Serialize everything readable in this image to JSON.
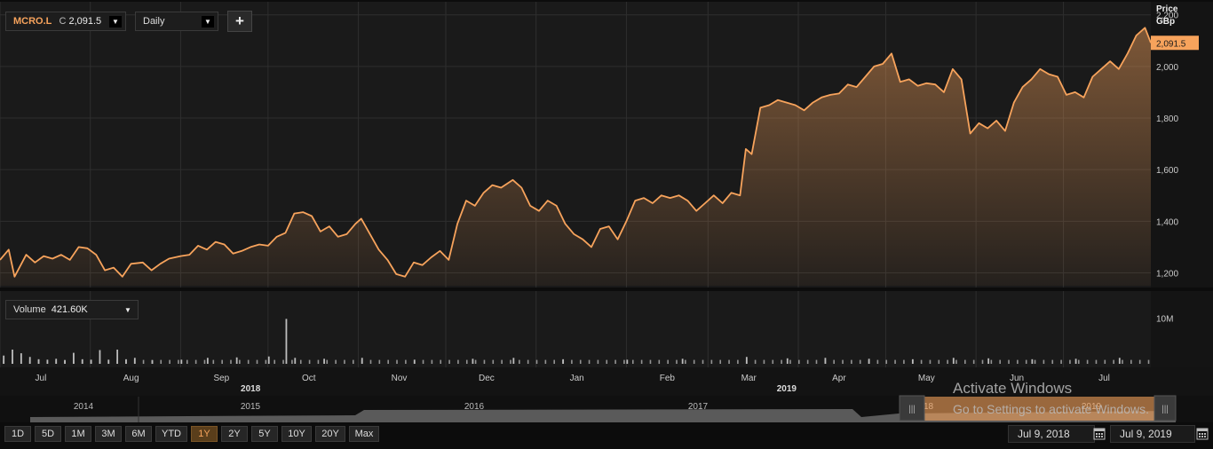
{
  "header": {
    "ticker": "MCRO.L",
    "close_prefix": "C",
    "close_value": "2,091.5",
    "interval": "Daily",
    "add_label": "+"
  },
  "price_axis": {
    "title": "Price",
    "unit": "GBp",
    "last_value_label": "2,091.5"
  },
  "volume_panel": {
    "label": "Volume",
    "value": "421.60K",
    "axis_label": "10M"
  },
  "time_axis": {
    "months": [
      {
        "label": "Jul",
        "date": "2018-07"
      },
      {
        "label": "Aug",
        "date": "2018-08"
      },
      {
        "label": "Sep",
        "date": "2018-09"
      },
      {
        "label": "Oct",
        "date": "2018-10"
      },
      {
        "label": "Nov",
        "date": "2018-11"
      },
      {
        "label": "Dec",
        "date": "2018-12"
      },
      {
        "label": "Jan",
        "date": "2019-01"
      },
      {
        "label": "Feb",
        "date": "2019-02"
      },
      {
        "label": "Mar",
        "date": "2019-03"
      },
      {
        "label": "Apr",
        "date": "2019-04"
      },
      {
        "label": "May",
        "date": "2019-05"
      },
      {
        "label": "Jun",
        "date": "2019-06"
      },
      {
        "label": "Jul",
        "date": "2019-07"
      }
    ],
    "years": [
      {
        "label": "2018",
        "date": "2018-09-25"
      },
      {
        "label": "2019",
        "date": "2019-03-28"
      }
    ]
  },
  "navigator": {
    "years": [
      "2014",
      "2015",
      "2016",
      "2017",
      "2018",
      "2019"
    ],
    "handle_glyph": "|||"
  },
  "range_buttons": [
    "1D",
    "5D",
    "1M",
    "3M",
    "6M",
    "YTD",
    "1Y",
    "2Y",
    "5Y",
    "10Y",
    "20Y",
    "Max"
  ],
  "active_range": "1Y",
  "date_range": {
    "from": "Jul 9, 2018",
    "to": "Jul 9, 2019"
  },
  "watermark": {
    "line1": "Activate Windows",
    "line2": "Go to Settings to activate Windows."
  },
  "colors": {
    "line": "#f7a35c",
    "background": "#1a1a1a",
    "grid": "#2e2e2e",
    "volume": "#bdbdbd"
  },
  "chart_data": {
    "type": "area",
    "title": "MCRO.L",
    "ylabel": "Price GBp",
    "ylim": [
      1150,
      2230
    ],
    "yticks": [
      1200,
      1400,
      1600,
      1800,
      2000,
      2200
    ],
    "grid": true,
    "xlim": [
      "2018-07-01",
      "2019-07-31"
    ],
    "series": [
      {
        "name": "MCRO.L",
        "points": [
          [
            "2018-07-01",
            1250
          ],
          [
            "2018-07-04",
            1290
          ],
          [
            "2018-07-06",
            1185
          ],
          [
            "2018-07-10",
            1270
          ],
          [
            "2018-07-13",
            1240
          ],
          [
            "2018-07-16",
            1265
          ],
          [
            "2018-07-19",
            1255
          ],
          [
            "2018-07-22",
            1270
          ],
          [
            "2018-07-25",
            1250
          ],
          [
            "2018-07-28",
            1300
          ],
          [
            "2018-07-31",
            1295
          ],
          [
            "2018-08-03",
            1270
          ],
          [
            "2018-08-06",
            1210
          ],
          [
            "2018-08-09",
            1220
          ],
          [
            "2018-08-12",
            1185
          ],
          [
            "2018-08-15",
            1235
          ],
          [
            "2018-08-19",
            1240
          ],
          [
            "2018-08-22",
            1210
          ],
          [
            "2018-08-25",
            1235
          ],
          [
            "2018-08-28",
            1255
          ],
          [
            "2018-09-01",
            1265
          ],
          [
            "2018-09-04",
            1270
          ],
          [
            "2018-09-07",
            1305
          ],
          [
            "2018-09-10",
            1290
          ],
          [
            "2018-09-13",
            1320
          ],
          [
            "2018-09-16",
            1310
          ],
          [
            "2018-09-19",
            1275
          ],
          [
            "2018-09-22",
            1285
          ],
          [
            "2018-09-25",
            1300
          ],
          [
            "2018-09-28",
            1310
          ],
          [
            "2018-10-01",
            1305
          ],
          [
            "2018-10-04",
            1340
          ],
          [
            "2018-10-07",
            1355
          ],
          [
            "2018-10-10",
            1430
          ],
          [
            "2018-10-13",
            1435
          ],
          [
            "2018-10-16",
            1420
          ],
          [
            "2018-10-19",
            1360
          ],
          [
            "2018-10-22",
            1380
          ],
          [
            "2018-10-25",
            1340
          ],
          [
            "2018-10-28",
            1350
          ],
          [
            "2018-10-31",
            1390
          ],
          [
            "2018-11-02",
            1410
          ],
          [
            "2018-11-05",
            1350
          ],
          [
            "2018-11-08",
            1290
          ],
          [
            "2018-11-11",
            1250
          ],
          [
            "2018-11-14",
            1195
          ],
          [
            "2018-11-17",
            1185
          ],
          [
            "2018-11-20",
            1240
          ],
          [
            "2018-11-23",
            1230
          ],
          [
            "2018-11-26",
            1260
          ],
          [
            "2018-11-29",
            1285
          ],
          [
            "2018-12-02",
            1250
          ],
          [
            "2018-12-05",
            1390
          ],
          [
            "2018-12-08",
            1480
          ],
          [
            "2018-12-11",
            1460
          ],
          [
            "2018-12-14",
            1510
          ],
          [
            "2018-12-17",
            1540
          ],
          [
            "2018-12-20",
            1530
          ],
          [
            "2018-12-24",
            1560
          ],
          [
            "2018-12-27",
            1530
          ],
          [
            "2018-12-30",
            1460
          ],
          [
            "2019-01-02",
            1440
          ],
          [
            "2019-01-05",
            1480
          ],
          [
            "2019-01-08",
            1460
          ],
          [
            "2019-01-11",
            1390
          ],
          [
            "2019-01-14",
            1350
          ],
          [
            "2019-01-17",
            1330
          ],
          [
            "2019-01-20",
            1300
          ],
          [
            "2019-01-23",
            1370
          ],
          [
            "2019-01-26",
            1380
          ],
          [
            "2019-01-29",
            1330
          ],
          [
            "2019-02-01",
            1400
          ],
          [
            "2019-02-04",
            1480
          ],
          [
            "2019-02-07",
            1490
          ],
          [
            "2019-02-10",
            1470
          ],
          [
            "2019-02-13",
            1500
          ],
          [
            "2019-02-16",
            1490
          ],
          [
            "2019-02-19",
            1500
          ],
          [
            "2019-02-22",
            1480
          ],
          [
            "2019-02-25",
            1440
          ],
          [
            "2019-02-28",
            1470
          ],
          [
            "2019-03-03",
            1500
          ],
          [
            "2019-03-06",
            1470
          ],
          [
            "2019-03-09",
            1510
          ],
          [
            "2019-03-12",
            1500
          ],
          [
            "2019-03-14",
            1680
          ],
          [
            "2019-03-16",
            1660
          ],
          [
            "2019-03-19",
            1840
          ],
          [
            "2019-03-22",
            1850
          ],
          [
            "2019-03-25",
            1870
          ],
          [
            "2019-03-28",
            1860
          ],
          [
            "2019-03-31",
            1850
          ],
          [
            "2019-04-03",
            1830
          ],
          [
            "2019-04-06",
            1860
          ],
          [
            "2019-04-09",
            1880
          ],
          [
            "2019-04-12",
            1890
          ],
          [
            "2019-04-15",
            1895
          ],
          [
            "2019-04-18",
            1930
          ],
          [
            "2019-04-21",
            1920
          ],
          [
            "2019-04-24",
            1960
          ],
          [
            "2019-04-27",
            2000
          ],
          [
            "2019-04-30",
            2010
          ],
          [
            "2019-05-03",
            2050
          ],
          [
            "2019-05-06",
            1940
          ],
          [
            "2019-05-09",
            1950
          ],
          [
            "2019-05-12",
            1925
          ],
          [
            "2019-05-15",
            1935
          ],
          [
            "2019-05-18",
            1930
          ],
          [
            "2019-05-21",
            1900
          ],
          [
            "2019-05-24",
            1990
          ],
          [
            "2019-05-27",
            1950
          ],
          [
            "2019-05-30",
            1740
          ],
          [
            "2019-06-02",
            1780
          ],
          [
            "2019-06-05",
            1760
          ],
          [
            "2019-06-08",
            1790
          ],
          [
            "2019-06-11",
            1750
          ],
          [
            "2019-06-14",
            1860
          ],
          [
            "2019-06-17",
            1920
          ],
          [
            "2019-06-20",
            1950
          ],
          [
            "2019-06-23",
            1990
          ],
          [
            "2019-06-26",
            1970
          ],
          [
            "2019-06-29",
            1960
          ],
          [
            "2019-07-02",
            1890
          ],
          [
            "2019-07-05",
            1900
          ],
          [
            "2019-07-08",
            1880
          ],
          [
            "2019-07-11",
            1960
          ],
          [
            "2019-07-14",
            1990
          ],
          [
            "2019-07-17",
            2020
          ],
          [
            "2019-07-20",
            1990
          ],
          [
            "2019-07-23",
            2050
          ],
          [
            "2019-07-26",
            2120
          ],
          [
            "2019-07-29",
            2150
          ],
          [
            "2019-07-31",
            2091.5
          ]
        ]
      }
    ],
    "volume": {
      "ylim": [
        0,
        12000000
      ],
      "bars": [
        [
          "2018-07-02",
          1800000
        ],
        [
          "2018-07-05",
          3100000
        ],
        [
          "2018-07-08",
          2300000
        ],
        [
          "2018-07-11",
          1500000
        ],
        [
          "2018-07-14",
          1000000
        ],
        [
          "2018-07-17",
          900000
        ],
        [
          "2018-07-20",
          1100000
        ],
        [
          "2018-07-23",
          800000
        ],
        [
          "2018-07-26",
          2400000
        ],
        [
          "2018-07-29",
          1000000
        ],
        [
          "2018-08-01",
          900000
        ],
        [
          "2018-08-04",
          3000000
        ],
        [
          "2018-08-07",
          900000
        ],
        [
          "2018-08-10",
          3100000
        ],
        [
          "2018-08-13",
          1000000
        ],
        [
          "2018-08-16",
          1300000
        ],
        [
          "2018-08-22",
          800000
        ],
        [
          "2018-09-01",
          900000
        ],
        [
          "2018-09-10",
          1300000
        ],
        [
          "2018-09-20",
          1400000
        ],
        [
          "2018-10-01",
          1600000
        ],
        [
          "2018-10-07",
          9800000
        ],
        [
          "2018-10-10",
          1300000
        ],
        [
          "2018-10-20",
          1100000
        ],
        [
          "2018-11-02",
          1300000
        ],
        [
          "2018-11-20",
          900000
        ],
        [
          "2018-12-10",
          1100000
        ],
        [
          "2018-12-24",
          1300000
        ],
        [
          "2019-01-10",
          1000000
        ],
        [
          "2019-02-01",
          900000
        ],
        [
          "2019-02-20",
          1100000
        ],
        [
          "2019-03-14",
          1500000
        ],
        [
          "2019-03-28",
          1200000
        ],
        [
          "2019-04-10",
          1300000
        ],
        [
          "2019-04-25",
          1100000
        ],
        [
          "2019-05-10",
          1000000
        ],
        [
          "2019-05-24",
          1300000
        ],
        [
          "2019-06-05",
          1200000
        ],
        [
          "2019-06-20",
          1000000
        ],
        [
          "2019-07-05",
          1100000
        ],
        [
          "2019-07-20",
          1300000
        ]
      ],
      "baseline": 850000
    }
  }
}
